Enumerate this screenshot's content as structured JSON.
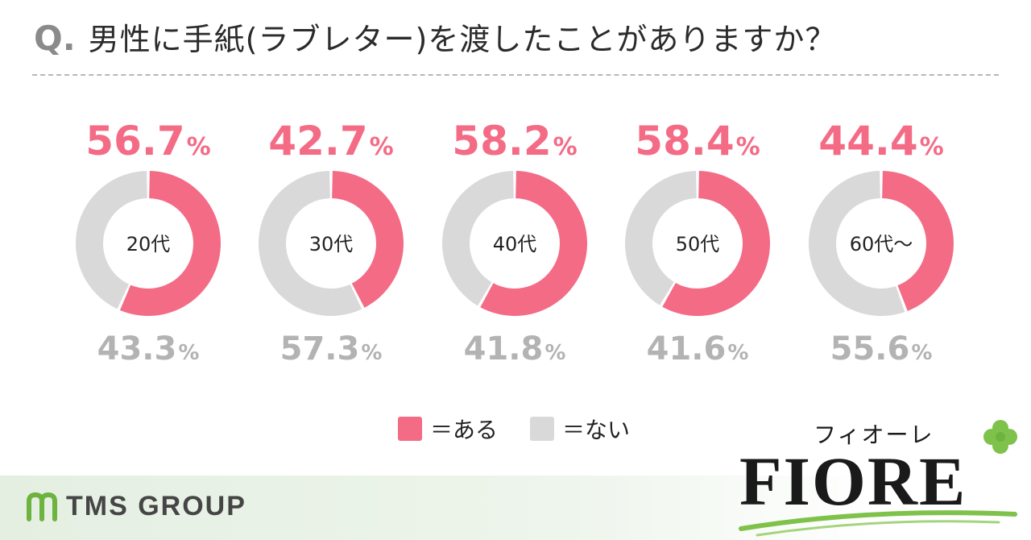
{
  "header": {
    "q_mark": "Q.",
    "question": "男性に手紙(ラブレター)を渡したことがありますか？"
  },
  "colors": {
    "yes": "#f46b86",
    "no": "#d9d9d9",
    "q_gray": "#8a8a8a",
    "brand_green": "#7fc24b"
  },
  "chart_data": {
    "type": "pie",
    "subtype": "donut",
    "title": "男性に手紙(ラブレター)を渡したことがありますか？",
    "categories": [
      "20代",
      "30代",
      "40代",
      "50代",
      "60代〜"
    ],
    "series": [
      {
        "name": "ある",
        "values": [
          56.7,
          42.7,
          58.2,
          58.4,
          44.4
        ]
      },
      {
        "name": "ない",
        "values": [
          43.3,
          57.3,
          41.8,
          41.6,
          55.6
        ]
      }
    ],
    "unit": "%",
    "legend_position": "bottom"
  },
  "legend": [
    {
      "label": "＝ある",
      "color": "#f46b86"
    },
    {
      "label": "＝ない",
      "color": "#d9d9d9"
    }
  ],
  "logos": {
    "tms": "TMS GROUP",
    "fiore_kana": "フィオーレ",
    "fiore": "FIORE"
  }
}
